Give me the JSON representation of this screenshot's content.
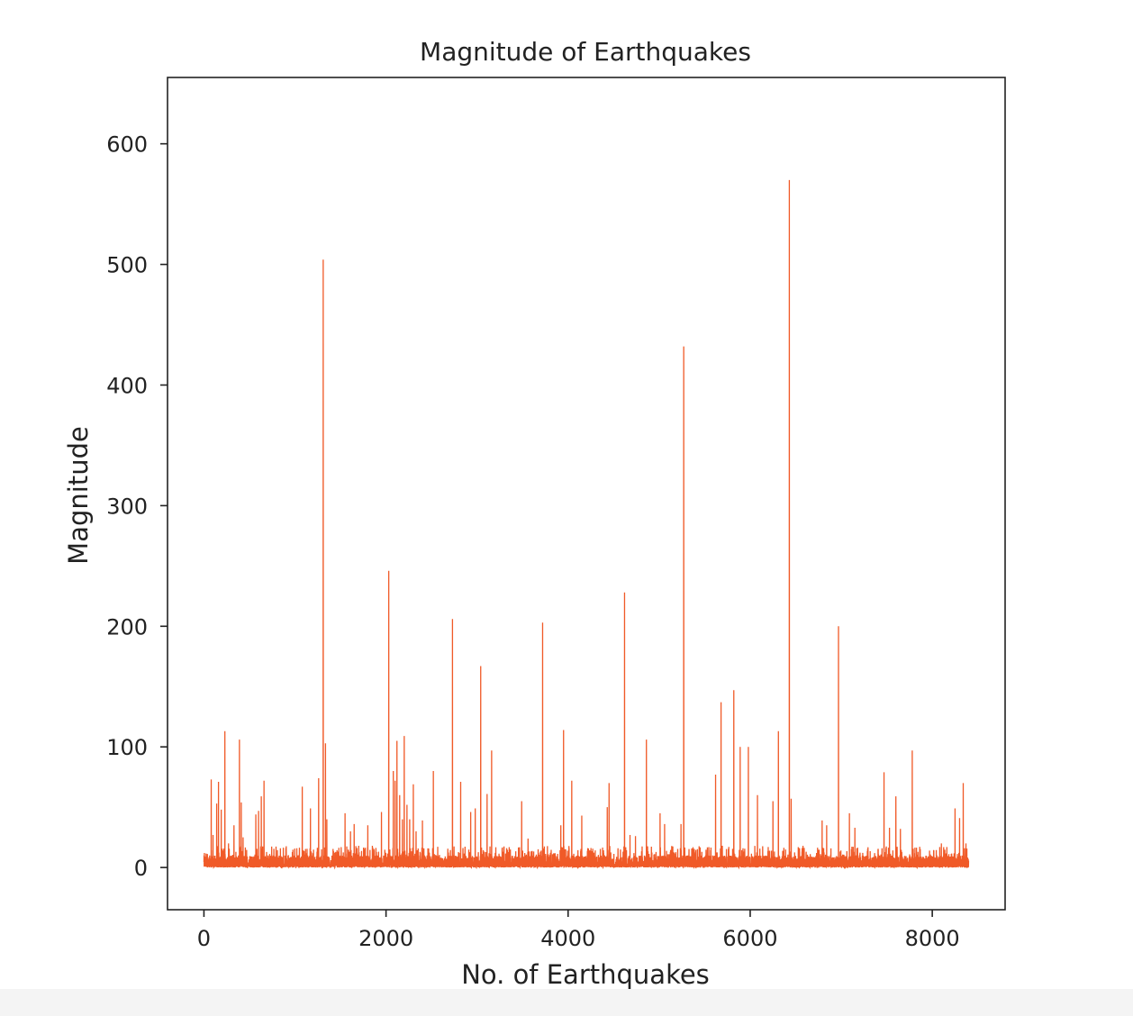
{
  "chart_data": {
    "type": "line",
    "title": "Magnitude of Earthquakes",
    "xlabel": "No. of Earthquakes",
    "ylabel": "Magnitude",
    "xlim": [
      -400,
      8800
    ],
    "ylim": [
      -35,
      655
    ],
    "x_ticks": [
      0,
      2000,
      4000,
      6000,
      8000
    ],
    "y_ticks": [
      0,
      100,
      200,
      300,
      400,
      500,
      600
    ],
    "n_points": 8400,
    "grid": false,
    "legend": "none",
    "series": [
      {
        "color": "#f05a28",
        "baseline_range": [
          0,
          12
        ],
        "spikes": [
          {
            "x": 5,
            "y": 12
          },
          {
            "x": 80,
            "y": 73
          },
          {
            "x": 100,
            "y": 27
          },
          {
            "x": 140,
            "y": 53
          },
          {
            "x": 160,
            "y": 71
          },
          {
            "x": 190,
            "y": 48
          },
          {
            "x": 230,
            "y": 113
          },
          {
            "x": 270,
            "y": 20
          },
          {
            "x": 330,
            "y": 35
          },
          {
            "x": 390,
            "y": 106
          },
          {
            "x": 410,
            "y": 54
          },
          {
            "x": 430,
            "y": 25
          },
          {
            "x": 520,
            "y": 8
          },
          {
            "x": 570,
            "y": 44
          },
          {
            "x": 600,
            "y": 47
          },
          {
            "x": 630,
            "y": 59
          },
          {
            "x": 660,
            "y": 72
          },
          {
            "x": 760,
            "y": 10
          },
          {
            "x": 840,
            "y": 16
          },
          {
            "x": 1020,
            "y": 16
          },
          {
            "x": 1080,
            "y": 67
          },
          {
            "x": 1170,
            "y": 49
          },
          {
            "x": 1260,
            "y": 74
          },
          {
            "x": 1310,
            "y": 504
          },
          {
            "x": 1335,
            "y": 103
          },
          {
            "x": 1350,
            "y": 40
          },
          {
            "x": 1550,
            "y": 45
          },
          {
            "x": 1610,
            "y": 30
          },
          {
            "x": 1650,
            "y": 36
          },
          {
            "x": 1700,
            "y": 18
          },
          {
            "x": 1770,
            "y": 14
          },
          {
            "x": 1800,
            "y": 35
          },
          {
            "x": 1850,
            "y": 18
          },
          {
            "x": 1950,
            "y": 46
          },
          {
            "x": 2030,
            "y": 246
          },
          {
            "x": 2080,
            "y": 80
          },
          {
            "x": 2100,
            "y": 72
          },
          {
            "x": 2120,
            "y": 105
          },
          {
            "x": 2150,
            "y": 60
          },
          {
            "x": 2180,
            "y": 40
          },
          {
            "x": 2200,
            "y": 109
          },
          {
            "x": 2230,
            "y": 52
          },
          {
            "x": 2260,
            "y": 40
          },
          {
            "x": 2300,
            "y": 69
          },
          {
            "x": 2330,
            "y": 30
          },
          {
            "x": 2400,
            "y": 39
          },
          {
            "x": 2520,
            "y": 80
          },
          {
            "x": 2730,
            "y": 206
          },
          {
            "x": 2820,
            "y": 71
          },
          {
            "x": 2930,
            "y": 46
          },
          {
            "x": 2980,
            "y": 49
          },
          {
            "x": 3040,
            "y": 167
          },
          {
            "x": 3110,
            "y": 61
          },
          {
            "x": 3160,
            "y": 97
          },
          {
            "x": 3490,
            "y": 55
          },
          {
            "x": 3560,
            "y": 24
          },
          {
            "x": 3720,
            "y": 203
          },
          {
            "x": 3920,
            "y": 35
          },
          {
            "x": 3950,
            "y": 114
          },
          {
            "x": 4040,
            "y": 72
          },
          {
            "x": 4150,
            "y": 43
          },
          {
            "x": 4430,
            "y": 50
          },
          {
            "x": 4450,
            "y": 70
          },
          {
            "x": 4620,
            "y": 228
          },
          {
            "x": 4680,
            "y": 27
          },
          {
            "x": 4740,
            "y": 26
          },
          {
            "x": 4860,
            "y": 106
          },
          {
            "x": 5010,
            "y": 45
          },
          {
            "x": 5060,
            "y": 36
          },
          {
            "x": 5110,
            "y": 11
          },
          {
            "x": 5240,
            "y": 36
          },
          {
            "x": 5270,
            "y": 432
          },
          {
            "x": 5620,
            "y": 77
          },
          {
            "x": 5680,
            "y": 137
          },
          {
            "x": 5820,
            "y": 147
          },
          {
            "x": 5890,
            "y": 100
          },
          {
            "x": 5980,
            "y": 100
          },
          {
            "x": 6080,
            "y": 60
          },
          {
            "x": 6250,
            "y": 55
          },
          {
            "x": 6310,
            "y": 113
          },
          {
            "x": 6430,
            "y": 570
          },
          {
            "x": 6450,
            "y": 57
          },
          {
            "x": 6580,
            "y": 18
          },
          {
            "x": 6790,
            "y": 39
          },
          {
            "x": 6840,
            "y": 35
          },
          {
            "x": 6970,
            "y": 200
          },
          {
            "x": 7090,
            "y": 45
          },
          {
            "x": 7150,
            "y": 33
          },
          {
            "x": 7470,
            "y": 79
          },
          {
            "x": 7530,
            "y": 33
          },
          {
            "x": 7600,
            "y": 59
          },
          {
            "x": 7650,
            "y": 32
          },
          {
            "x": 7780,
            "y": 97
          },
          {
            "x": 7970,
            "y": 14
          },
          {
            "x": 8100,
            "y": 20
          },
          {
            "x": 8250,
            "y": 49
          },
          {
            "x": 8300,
            "y": 41
          },
          {
            "x": 8340,
            "y": 70
          },
          {
            "x": 8370,
            "y": 20
          }
        ]
      }
    ]
  }
}
